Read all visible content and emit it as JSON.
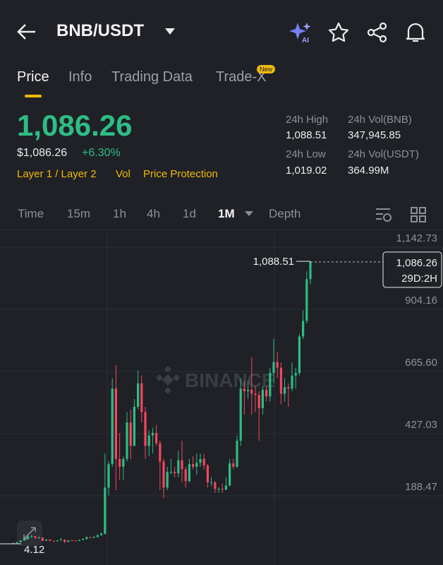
{
  "header": {
    "title": "BNB/USDT",
    "ai_badge": "AI"
  },
  "tabs": [
    {
      "label": "Price"
    },
    {
      "label": "Info"
    },
    {
      "label": "Trading Data"
    },
    {
      "label": "Trade-X",
      "badge": "New"
    }
  ],
  "price": {
    "last": "1,086.26",
    "usd": "$1,086.26",
    "change": "+6.30%",
    "tags": [
      "Layer 1 / Layer 2",
      "Vol",
      "Price Protection"
    ]
  },
  "stats": [
    {
      "label": "24h High",
      "value": "1,088.51"
    },
    {
      "label": "24h Vol(BNB)",
      "value": "347,945.85"
    },
    {
      "label": "24h Low",
      "value": "1,019.02"
    },
    {
      "label": "24h Vol(USDT)",
      "value": "364.99M"
    }
  ],
  "intervals": [
    "Time",
    "15m",
    "1h",
    "4h",
    "1d",
    "1M",
    "Depth"
  ],
  "chart_data": {
    "type": "candlestick",
    "watermark": "BINANCE",
    "up_color": "#2ebd85",
    "down_color": "#f6465d",
    "ylim": [
      -77.2,
      1210.5
    ],
    "yticks": [
      {
        "value": 1142.73,
        "label": "1,142.73"
      },
      904.16,
      {
        "value": 665.6,
        "label": "665.60"
      },
      427.03,
      188.47
    ],
    "high_marker": {
      "value": 1088.51,
      "label": "1,088.51"
    },
    "current_price": {
      "value": 1086.26,
      "label": "1,086.26"
    },
    "countdown": "29D:2H",
    "low_marker": 4.12,
    "candles": [
      [
        6.0,
        7.8,
        4.2,
        6.7
      ],
      [
        6.7,
        11,
        5.9,
        10.4
      ],
      [
        10.4,
        18,
        10,
        17
      ],
      [
        17,
        27,
        16,
        23
      ],
      [
        23,
        36,
        20,
        33
      ],
      [
        33,
        39,
        26,
        33
      ],
      [
        33,
        34,
        22,
        27
      ],
      [
        27,
        32,
        24,
        28
      ],
      [
        28,
        29,
        15,
        16
      ],
      [
        16,
        22,
        15,
        20
      ],
      [
        20,
        21,
        14,
        15.5
      ],
      [
        15.5,
        16,
        12.5,
        13.8
      ],
      [
        13.8,
        18,
        13,
        17
      ],
      [
        17,
        27,
        17,
        20
      ],
      [
        20,
        21,
        7,
        12
      ],
      [
        12,
        18,
        11,
        17
      ],
      [
        17,
        19,
        15,
        16.7
      ],
      [
        16.7,
        18,
        14.5,
        15.5
      ],
      [
        15.5,
        20,
        15,
        19
      ],
      [
        19,
        24,
        18,
        23
      ],
      [
        23,
        33,
        20,
        29
      ],
      [
        29,
        32,
        26,
        28
      ],
      [
        28,
        35,
        25,
        30
      ],
      [
        30,
        41,
        29,
        37
      ],
      [
        37,
        48,
        35,
        43
      ],
      [
        43,
        350,
        40,
        220
      ],
      [
        220,
        320,
        190,
        310
      ],
      [
        310,
        640,
        300,
        600
      ],
      [
        600,
        690,
        210,
        330
      ],
      [
        330,
        430,
        250,
        300
      ],
      [
        300,
        340,
        250,
        330
      ],
      [
        330,
        510,
        320,
        470
      ],
      [
        470,
        520,
        330,
        380
      ],
      [
        380,
        560,
        380,
        530
      ],
      [
        530,
        670,
        520,
        620
      ],
      [
        620,
        650,
        470,
        510
      ],
      [
        510,
        530,
        330,
        380
      ],
      [
        380,
        440,
        340,
        420
      ],
      [
        420,
        450,
        350,
        430
      ],
      [
        430,
        460,
        380,
        390
      ],
      [
        390,
        400,
        210,
        320
      ],
      [
        320,
        330,
        180,
        220
      ],
      [
        220,
        300,
        210,
        280
      ],
      [
        280,
        330,
        270,
        280
      ],
      [
        280,
        300,
        260,
        275
      ],
      [
        275,
        360,
        260,
        325
      ],
      [
        325,
        400,
        240,
        290
      ],
      [
        290,
        300,
        220,
        245
      ],
      [
        245,
        330,
        240,
        310
      ],
      [
        310,
        340,
        290,
        300
      ],
      [
        300,
        350,
        270,
        315
      ],
      [
        315,
        350,
        300,
        330
      ],
      [
        330,
        350,
        290,
        305
      ],
      [
        305,
        310,
        220,
        240
      ],
      [
        240,
        260,
        225,
        240
      ],
      [
        240,
        245,
        200,
        215
      ],
      [
        215,
        222,
        200,
        215
      ],
      [
        215,
        235,
        200,
        212
      ],
      [
        212,
        260,
        210,
        228
      ],
      [
        228,
        330,
        225,
        313
      ],
      [
        313,
        330,
        290,
        300
      ],
      [
        300,
        420,
        295,
        400
      ],
      [
        400,
        640,
        380,
        600
      ],
      [
        600,
        630,
        500,
        590
      ],
      [
        590,
        630,
        560,
        595
      ],
      [
        595,
        720,
        500,
        580
      ],
      [
        580,
        610,
        510,
        575
      ],
      [
        575,
        590,
        400,
        525
      ],
      [
        525,
        610,
        500,
        595
      ],
      [
        595,
        610,
        550,
        570
      ],
      [
        570,
        680,
        550,
        660
      ],
      [
        660,
        790,
        620,
        702
      ],
      [
        702,
        740,
        640,
        680
      ],
      [
        680,
        700,
        540,
        580
      ],
      [
        580,
        640,
        550,
        605
      ],
      [
        605,
        620,
        530,
        600
      ],
      [
        600,
        700,
        590,
        650
      ],
      [
        650,
        680,
        600,
        660
      ],
      [
        660,
        810,
        650,
        800
      ],
      [
        800,
        900,
        790,
        860
      ],
      [
        860,
        1050,
        850,
        1020
      ],
      [
        1020,
        1088.51,
        1000,
        1086.26
      ]
    ]
  }
}
